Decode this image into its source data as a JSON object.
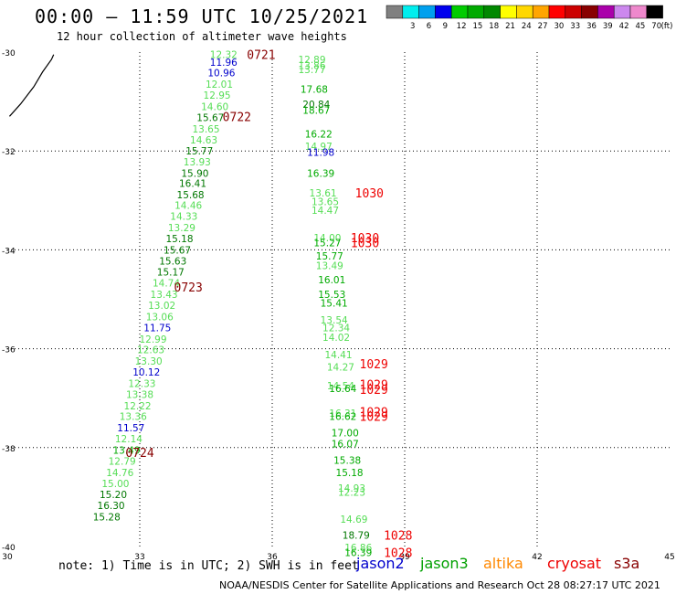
{
  "header": {
    "title": "00:00 – 11:59 UTC 10/25/2021",
    "subtitle": "12 hour collection of altimeter wave heights"
  },
  "footer": {
    "note": "note: 1) Time is in UTC; 2) SWH is in feet",
    "credit": "NOAA/NESDIS Center for Satellite Applications and Research   Oct 28 08:27:17 UTC 2021",
    "satellites": [
      {
        "name": "jason2",
        "color": "#0000cc"
      },
      {
        "name": "jason3",
        "color": "#00a000"
      },
      {
        "name": "altika",
        "color": "#ff8800"
      },
      {
        "name": "cryosat",
        "color": "#ee0000"
      },
      {
        "name": "s3a",
        "color": "#880000"
      }
    ]
  },
  "colorbar": {
    "unit": "(ft)",
    "bins": [
      {
        "color": "#808080",
        "label": ""
      },
      {
        "color": "#00eeee",
        "label": "3"
      },
      {
        "color": "#00a0ee",
        "label": "6"
      },
      {
        "color": "#0000ee",
        "label": "9"
      },
      {
        "color": "#00cc00",
        "label": "12"
      },
      {
        "color": "#00aa00",
        "label": "15"
      },
      {
        "color": "#008800",
        "label": "18"
      },
      {
        "color": "#ffff00",
        "label": "21"
      },
      {
        "color": "#ffd700",
        "label": "24"
      },
      {
        "color": "#ffa500",
        "label": "27"
      },
      {
        "color": "#ff0000",
        "label": "30"
      },
      {
        "color": "#cc0000",
        "label": "33"
      },
      {
        "color": "#880000",
        "label": "36"
      },
      {
        "color": "#aa00aa",
        "label": "39"
      },
      {
        "color": "#cc88ee",
        "label": "42"
      },
      {
        "color": "#ee88cc",
        "label": "45"
      },
      {
        "color": "#000000",
        "label": "70"
      }
    ]
  },
  "chart_data": {
    "type": "scatter",
    "title": "00:00 – 11:59 UTC 10/25/2021",
    "xlim": [
      30,
      45
    ],
    "ylim": [
      -40,
      -30
    ],
    "x_ticks": [
      30,
      33,
      36,
      39,
      42,
      45
    ],
    "y_ticks": [
      -30,
      -32,
      -34,
      -36,
      -38,
      -40
    ],
    "grid": true,
    "colors": {
      "light": "#55dd55",
      "mid": "#00aa00",
      "dark": "#007700",
      "blue": "#0000cc",
      "s3a": "#880000",
      "cryosat": "#ee0000",
      "coast": "#000000"
    },
    "coastline": [
      [
        30.05,
        -31.3
      ],
      [
        30.3,
        -31.05
      ],
      [
        30.6,
        -30.7
      ],
      [
        30.8,
        -30.4
      ],
      [
        31.0,
        -30.15
      ],
      [
        31.05,
        -30.05
      ]
    ],
    "points": [
      {
        "x": 34.9,
        "y": -30.05,
        "v": "12.32",
        "c": "light"
      },
      {
        "x": 34.9,
        "y": -30.2,
        "v": "11.96",
        "c": "blue"
      },
      {
        "x": 34.85,
        "y": -30.42,
        "v": "10.96",
        "c": "blue"
      },
      {
        "x": 34.8,
        "y": -30.65,
        "v": "12.01",
        "c": "light"
      },
      {
        "x": 34.75,
        "y": -30.87,
        "v": "12.95",
        "c": "light"
      },
      {
        "x": 34.7,
        "y": -31.1,
        "v": "14.60",
        "c": "light"
      },
      {
        "x": 34.6,
        "y": -31.32,
        "v": "15.67",
        "c": "dark"
      },
      {
        "x": 34.5,
        "y": -31.55,
        "v": "13.65",
        "c": "light"
      },
      {
        "x": 34.45,
        "y": -31.77,
        "v": "14.63",
        "c": "light"
      },
      {
        "x": 34.35,
        "y": -32.0,
        "v": "15.77",
        "c": "dark"
      },
      {
        "x": 34.3,
        "y": -32.22,
        "v": "13.93",
        "c": "light"
      },
      {
        "x": 34.25,
        "y": -32.45,
        "v": "15.90",
        "c": "dark"
      },
      {
        "x": 34.2,
        "y": -32.65,
        "v": "16.41",
        "c": "dark"
      },
      {
        "x": 34.15,
        "y": -32.88,
        "v": "15.68",
        "c": "dark"
      },
      {
        "x": 34.1,
        "y": -33.1,
        "v": "14.46",
        "c": "light"
      },
      {
        "x": 34.0,
        "y": -33.32,
        "v": "14.33",
        "c": "light"
      },
      {
        "x": 33.95,
        "y": -33.55,
        "v": "13.29",
        "c": "light"
      },
      {
        "x": 33.9,
        "y": -33.77,
        "v": "15.18",
        "c": "dark"
      },
      {
        "x": 33.85,
        "y": -34.0,
        "v": "15.67",
        "c": "dark"
      },
      {
        "x": 33.75,
        "y": -34.22,
        "v": "15.63",
        "c": "dark"
      },
      {
        "x": 33.7,
        "y": -34.45,
        "v": "15.17",
        "c": "dark"
      },
      {
        "x": 33.6,
        "y": -34.67,
        "v": "14.74",
        "c": "light"
      },
      {
        "x": 33.55,
        "y": -34.9,
        "v": "13.43",
        "c": "light"
      },
      {
        "x": 33.5,
        "y": -35.12,
        "v": "13.02",
        "c": "light"
      },
      {
        "x": 33.45,
        "y": -35.35,
        "v": "13.06",
        "c": "light"
      },
      {
        "x": 33.4,
        "y": -35.57,
        "v": "11.75",
        "c": "blue"
      },
      {
        "x": 33.3,
        "y": -35.8,
        "v": "12.99",
        "c": "light"
      },
      {
        "x": 33.25,
        "y": -36.02,
        "v": "12.63",
        "c": "light"
      },
      {
        "x": 33.2,
        "y": -36.25,
        "v": "13.30",
        "c": "light"
      },
      {
        "x": 33.15,
        "y": -36.47,
        "v": "10.12",
        "c": "blue"
      },
      {
        "x": 33.05,
        "y": -36.7,
        "v": "12.33",
        "c": "light"
      },
      {
        "x": 33.0,
        "y": -36.92,
        "v": "13.38",
        "c": "light"
      },
      {
        "x": 32.95,
        "y": -37.15,
        "v": "12.22",
        "c": "light"
      },
      {
        "x": 32.85,
        "y": -37.37,
        "v": "13.36",
        "c": "light"
      },
      {
        "x": 32.8,
        "y": -37.6,
        "v": "11.57",
        "c": "blue"
      },
      {
        "x": 32.75,
        "y": -37.82,
        "v": "12.14",
        "c": "light"
      },
      {
        "x": 32.7,
        "y": -38.05,
        "v": "13.49",
        "c": "mid"
      },
      {
        "x": 32.6,
        "y": -38.27,
        "v": "12.79",
        "c": "light"
      },
      {
        "x": 32.55,
        "y": -38.5,
        "v": "14.76",
        "c": "light"
      },
      {
        "x": 32.45,
        "y": -38.72,
        "v": "15.00",
        "c": "light"
      },
      {
        "x": 32.4,
        "y": -38.95,
        "v": "15.20",
        "c": "dark"
      },
      {
        "x": 32.35,
        "y": -39.17,
        "v": "16.30",
        "c": "dark"
      },
      {
        "x": 32.25,
        "y": -39.4,
        "v": "15.28",
        "c": "dark"
      },
      {
        "x": 36.9,
        "y": -30.15,
        "v": "12.89",
        "c": "light"
      },
      {
        "x": 36.9,
        "y": -30.27,
        "v": "13.86",
        "c": "light"
      },
      {
        "x": 36.9,
        "y": -30.35,
        "v": "13.77",
        "c": "light"
      },
      {
        "x": 36.95,
        "y": -30.75,
        "v": "17.68",
        "c": "mid"
      },
      {
        "x": 37.0,
        "y": -31.05,
        "v": "20.84",
        "c": "dark"
      },
      {
        "x": 37.0,
        "y": -31.17,
        "v": "18.67",
        "c": "mid"
      },
      {
        "x": 37.05,
        "y": -31.65,
        "v": "16.22",
        "c": "mid"
      },
      {
        "x": 37.05,
        "y": -31.9,
        "v": "14.97",
        "c": "light"
      },
      {
        "x": 37.1,
        "y": -32.02,
        "v": "11.98",
        "c": "blue"
      },
      {
        "x": 37.1,
        "y": -32.45,
        "v": "16.39",
        "c": "mid"
      },
      {
        "x": 37.15,
        "y": -32.85,
        "v": "13.61",
        "c": "light"
      },
      {
        "x": 37.2,
        "y": -33.02,
        "v": "13.65",
        "c": "light"
      },
      {
        "x": 37.2,
        "y": -33.2,
        "v": "14.47",
        "c": "light"
      },
      {
        "x": 37.25,
        "y": -33.75,
        "v": "14.00",
        "c": "light"
      },
      {
        "x": 37.25,
        "y": -33.85,
        "v": "15.27",
        "c": "mid"
      },
      {
        "x": 37.3,
        "y": -34.12,
        "v": "15.77",
        "c": "mid"
      },
      {
        "x": 37.3,
        "y": -34.32,
        "v": "13.49",
        "c": "light"
      },
      {
        "x": 37.35,
        "y": -34.6,
        "v": "16.01",
        "c": "mid"
      },
      {
        "x": 37.35,
        "y": -34.9,
        "v": "15.53",
        "c": "mid"
      },
      {
        "x": 37.4,
        "y": -35.07,
        "v": "15.41",
        "c": "mid"
      },
      {
        "x": 37.4,
        "y": -35.42,
        "v": "13.54",
        "c": "light"
      },
      {
        "x": 37.45,
        "y": -35.57,
        "v": "12.34",
        "c": "light"
      },
      {
        "x": 37.45,
        "y": -35.77,
        "v": "14.02",
        "c": "light"
      },
      {
        "x": 37.5,
        "y": -36.12,
        "v": "14.41",
        "c": "light"
      },
      {
        "x": 37.55,
        "y": -36.37,
        "v": "14.27",
        "c": "light"
      },
      {
        "x": 37.55,
        "y": -36.75,
        "v": "14.54",
        "c": "light"
      },
      {
        "x": 37.6,
        "y": -36.8,
        "v": "16.64",
        "c": "mid"
      },
      {
        "x": 37.6,
        "y": -37.3,
        "v": "16.31",
        "c": "light"
      },
      {
        "x": 37.6,
        "y": -37.37,
        "v": "16.62",
        "c": "mid"
      },
      {
        "x": 37.65,
        "y": -37.7,
        "v": "17.00",
        "c": "mid"
      },
      {
        "x": 37.65,
        "y": -37.92,
        "v": "16.07",
        "c": "mid"
      },
      {
        "x": 37.7,
        "y": -38.25,
        "v": "15.38",
        "c": "mid"
      },
      {
        "x": 37.75,
        "y": -38.5,
        "v": "15.18",
        "c": "mid"
      },
      {
        "x": 37.8,
        "y": -38.82,
        "v": "14.93",
        "c": "light"
      },
      {
        "x": 37.8,
        "y": -38.9,
        "v": "12.23",
        "c": "light"
      },
      {
        "x": 37.85,
        "y": -39.45,
        "v": "14.69",
        "c": "light"
      },
      {
        "x": 37.9,
        "y": -39.77,
        "v": "18.79",
        "c": "dark"
      },
      {
        "x": 37.95,
        "y": -40.02,
        "v": "16.86",
        "c": "light"
      },
      {
        "x": 37.95,
        "y": -40.12,
        "v": "16.39",
        "c": "mid"
      }
    ],
    "time_labels": [
      {
        "x": 35.75,
        "y": -30.05,
        "t": "0721",
        "c": "s3a"
      },
      {
        "x": 35.2,
        "y": -31.3,
        "t": "0722",
        "c": "s3a"
      },
      {
        "x": 34.1,
        "y": -34.75,
        "t": "0723",
        "c": "s3a"
      },
      {
        "x": 33.0,
        "y": -38.1,
        "t": "0724",
        "c": "s3a"
      },
      {
        "x": 38.2,
        "y": -32.85,
        "t": "1030",
        "c": "cryosat"
      },
      {
        "x": 38.1,
        "y": -33.75,
        "t": "1030",
        "c": "cryosat"
      },
      {
        "x": 38.1,
        "y": -33.85,
        "t": "1030",
        "c": "cryosat"
      },
      {
        "x": 38.3,
        "y": -36.3,
        "t": "1029",
        "c": "cryosat"
      },
      {
        "x": 38.3,
        "y": -36.72,
        "t": "1029",
        "c": "cryosat"
      },
      {
        "x": 38.3,
        "y": -36.82,
        "t": "1029",
        "c": "cryosat"
      },
      {
        "x": 38.3,
        "y": -37.27,
        "t": "1029",
        "c": "cryosat"
      },
      {
        "x": 38.3,
        "y": -37.37,
        "t": "1029",
        "c": "cryosat"
      },
      {
        "x": 38.85,
        "y": -39.77,
        "t": "1028",
        "c": "cryosat"
      },
      {
        "x": 38.85,
        "y": -40.12,
        "t": "1028",
        "c": "cryosat"
      }
    ]
  }
}
